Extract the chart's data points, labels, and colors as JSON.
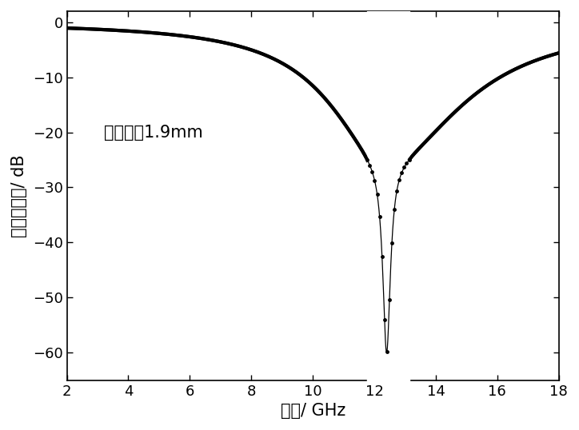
{
  "title": "",
  "xlabel": "频率/ GHz",
  "ylabel": "反射损耗值/ dB",
  "annotation": "匹配厚度1.9mm",
  "xlim": [
    2,
    18
  ],
  "ylim": [
    -65,
    2
  ],
  "xticks": [
    2,
    4,
    6,
    8,
    10,
    12,
    14,
    16,
    18
  ],
  "yticks": [
    0,
    -10,
    -20,
    -30,
    -40,
    -50,
    -60
  ],
  "peak_freq": 12.4,
  "peak_val": -60.0,
  "line_color": "#000000",
  "bg_color": "#ffffff",
  "annotation_fontsize": 15,
  "label_fontsize": 15,
  "tick_fontsize": 13
}
